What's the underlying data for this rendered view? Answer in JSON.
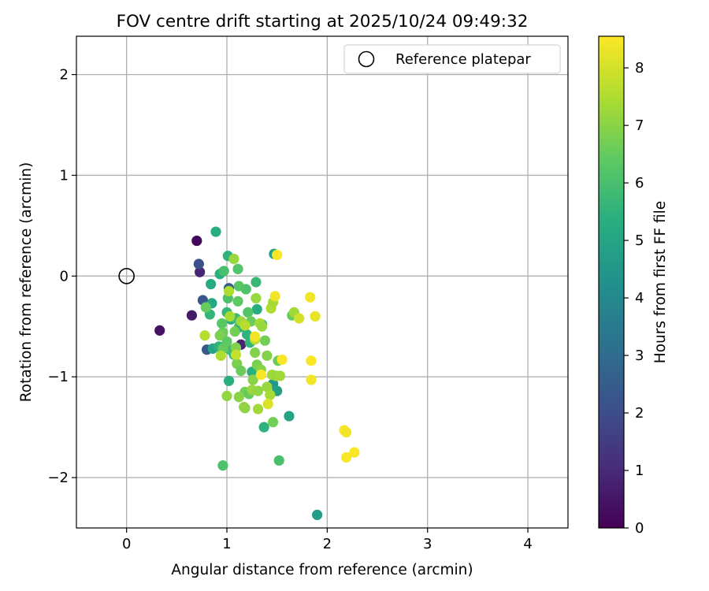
{
  "chart_data": {
    "type": "scatter",
    "title": "FOV centre drift starting at 2025/10/24 09:49:32",
    "xlabel": "Angular distance from reference (arcmin)",
    "ylabel": "Rotation from reference (arcmin)",
    "xlim": [
      -0.5,
      4.4
    ],
    "ylim": [
      -2.5,
      2.38
    ],
    "xticks": [
      0,
      1,
      2,
      3,
      4
    ],
    "xtick_labels": [
      "0",
      "1",
      "2",
      "3",
      "4"
    ],
    "yticks": [
      -2,
      -1,
      0,
      1,
      2
    ],
    "ytick_labels": [
      "−2",
      "−1",
      "0",
      "1",
      "2"
    ],
    "grid": true,
    "legend": {
      "placement": "top-right",
      "entries": [
        {
          "label": "Reference platepar",
          "marker": "open-circle"
        }
      ]
    },
    "reference_point": {
      "x": 0,
      "y": 0,
      "label": "Reference platepar"
    },
    "colorbar": {
      "label": "Hours from first FF file",
      "colormap": "viridis",
      "range": [
        0,
        8.55
      ],
      "ticks": [
        0,
        1,
        2,
        3,
        4,
        5,
        6,
        7,
        8
      ],
      "tick_labels": [
        "0",
        "1",
        "2",
        "3",
        "4",
        "5",
        "6",
        "7",
        "8"
      ]
    },
    "points": [
      {
        "x": 0.33,
        "y": -0.54,
        "h": 0.4
      },
      {
        "x": 0.7,
        "y": 0.35,
        "h": 0.2
      },
      {
        "x": 0.65,
        "y": -0.39,
        "h": 0.6
      },
      {
        "x": 0.73,
        "y": 0.04,
        "h": 0.9
      },
      {
        "x": 1.14,
        "y": -0.68,
        "h": 0.8
      },
      {
        "x": 0.72,
        "y": 0.12,
        "h": 2.1
      },
      {
        "x": 0.76,
        "y": -0.24,
        "h": 2.3
      },
      {
        "x": 0.8,
        "y": -0.73,
        "h": 2.4
      },
      {
        "x": 1.02,
        "y": -0.12,
        "h": 2.6
      },
      {
        "x": 0.89,
        "y": 0.44,
        "h": 5.3
      },
      {
        "x": 1.01,
        "y": 0.2,
        "h": 5.5
      },
      {
        "x": 1.47,
        "y": 0.22,
        "h": 4.9
      },
      {
        "x": 1.9,
        "y": -2.37,
        "h": 4.7
      },
      {
        "x": 1.62,
        "y": -1.39,
        "h": 4.9
      },
      {
        "x": 1.46,
        "y": -1.07,
        "h": 4.5
      },
      {
        "x": 1.5,
        "y": -1.14,
        "h": 4.8
      },
      {
        "x": 0.93,
        "y": 0.02,
        "h": 5.4
      },
      {
        "x": 0.84,
        "y": -0.08,
        "h": 5.2
      },
      {
        "x": 0.85,
        "y": -0.27,
        "h": 5.1
      },
      {
        "x": 0.83,
        "y": -0.38,
        "h": 5.6
      },
      {
        "x": 0.86,
        "y": -0.72,
        "h": 5.0
      },
      {
        "x": 0.92,
        "y": -0.7,
        "h": 5.5
      },
      {
        "x": 1.0,
        "y": -0.36,
        "h": 5.7
      },
      {
        "x": 1.04,
        "y": -0.43,
        "h": 5.3
      },
      {
        "x": 1.02,
        "y": -1.04,
        "h": 5.4
      },
      {
        "x": 1.09,
        "y": -0.42,
        "h": 5.8
      },
      {
        "x": 1.12,
        "y": -0.51,
        "h": 5.6
      },
      {
        "x": 1.15,
        "y": -0.5,
        "h": 5.2
      },
      {
        "x": 1.03,
        "y": -0.73,
        "h": 5.9
      },
      {
        "x": 1.07,
        "y": -0.78,
        "h": 5.7
      },
      {
        "x": 1.2,
        "y": -0.58,
        "h": 5.5
      },
      {
        "x": 1.23,
        "y": -0.66,
        "h": 5.6
      },
      {
        "x": 1.25,
        "y": -0.95,
        "h": 5.4
      },
      {
        "x": 1.29,
        "y": -0.06,
        "h": 5.7
      },
      {
        "x": 1.3,
        "y": -0.33,
        "h": 5.3
      },
      {
        "x": 1.35,
        "y": -0.48,
        "h": 5.6
      },
      {
        "x": 1.37,
        "y": -1.5,
        "h": 5.5
      },
      {
        "x": 1.52,
        "y": -1.83,
        "h": 6.0
      },
      {
        "x": 0.96,
        "y": -1.88,
        "h": 6.1
      },
      {
        "x": 0.97,
        "y": 0.05,
        "h": 6.0
      },
      {
        "x": 1.01,
        "y": -0.22,
        "h": 6.1
      },
      {
        "x": 1.11,
        "y": 0.07,
        "h": 6.2
      },
      {
        "x": 1.12,
        "y": -0.1,
        "h": 6.3
      },
      {
        "x": 1.19,
        "y": -0.13,
        "h": 6.1
      },
      {
        "x": 1.11,
        "y": -0.25,
        "h": 6.4
      },
      {
        "x": 1.21,
        "y": -0.36,
        "h": 6.2
      },
      {
        "x": 1.24,
        "y": -0.45,
        "h": 6.6
      },
      {
        "x": 0.79,
        "y": -0.31,
        "h": 6.5
      },
      {
        "x": 0.95,
        "y": -0.47,
        "h": 6.3
      },
      {
        "x": 0.96,
        "y": -0.56,
        "h": 6.6
      },
      {
        "x": 0.93,
        "y": -0.59,
        "h": 6.8
      },
      {
        "x": 0.96,
        "y": -0.72,
        "h": 6.5
      },
      {
        "x": 1.0,
        "y": -0.65,
        "h": 6.4
      },
      {
        "x": 1.08,
        "y": -0.55,
        "h": 6.7
      },
      {
        "x": 1.09,
        "y": -0.71,
        "h": 6.9
      },
      {
        "x": 1.1,
        "y": -0.87,
        "h": 6.8
      },
      {
        "x": 1.14,
        "y": -0.94,
        "h": 6.6
      },
      {
        "x": 1.18,
        "y": -1.15,
        "h": 6.7
      },
      {
        "x": 1.22,
        "y": -1.17,
        "h": 6.5
      },
      {
        "x": 1.18,
        "y": -1.31,
        "h": 6.9
      },
      {
        "x": 1.28,
        "y": -0.76,
        "h": 6.9
      },
      {
        "x": 1.3,
        "y": -0.88,
        "h": 6.8
      },
      {
        "x": 1.34,
        "y": -0.93,
        "h": 7.0
      },
      {
        "x": 1.38,
        "y": -0.64,
        "h": 6.7
      },
      {
        "x": 1.4,
        "y": -0.79,
        "h": 6.9
      },
      {
        "x": 1.46,
        "y": -1.45,
        "h": 6.7
      },
      {
        "x": 1.51,
        "y": -0.84,
        "h": 6.6
      },
      {
        "x": 1.65,
        "y": -0.39,
        "h": 6.5
      },
      {
        "x": 1.0,
        "y": -1.19,
        "h": 7.1
      },
      {
        "x": 1.12,
        "y": -1.2,
        "h": 7.0
      },
      {
        "x": 1.17,
        "y": -1.3,
        "h": 7.1
      },
      {
        "x": 1.25,
        "y": -1.13,
        "h": 7.2
      },
      {
        "x": 1.26,
        "y": -1.03,
        "h": 7.0
      },
      {
        "x": 1.31,
        "y": -1.32,
        "h": 7.3
      },
      {
        "x": 1.31,
        "y": -1.14,
        "h": 7.1
      },
      {
        "x": 1.4,
        "y": -1.1,
        "h": 7.2
      },
      {
        "x": 1.43,
        "y": -1.18,
        "h": 7.4
      },
      {
        "x": 1.45,
        "y": -0.98,
        "h": 7.3
      },
      {
        "x": 1.49,
        "y": -0.99,
        "h": 7.2
      },
      {
        "x": 1.53,
        "y": -0.99,
        "h": 7.3
      },
      {
        "x": 1.07,
        "y": 0.17,
        "h": 7.2
      },
      {
        "x": 1.02,
        "y": -0.15,
        "h": 7.5
      },
      {
        "x": 1.03,
        "y": -0.4,
        "h": 7.4
      },
      {
        "x": 1.14,
        "y": -0.45,
        "h": 7.3
      },
      {
        "x": 1.18,
        "y": -0.49,
        "h": 7.6
      },
      {
        "x": 1.29,
        "y": -0.22,
        "h": 7.2
      },
      {
        "x": 1.33,
        "y": -0.47,
        "h": 7.4
      },
      {
        "x": 1.35,
        "y": -0.5,
        "h": 7.2
      },
      {
        "x": 1.44,
        "y": -0.32,
        "h": 7.5
      },
      {
        "x": 1.46,
        "y": -0.26,
        "h": 7.4
      },
      {
        "x": 1.67,
        "y": -0.36,
        "h": 7.3
      },
      {
        "x": 0.78,
        "y": -0.59,
        "h": 7.6
      },
      {
        "x": 0.94,
        "y": -0.79,
        "h": 7.5
      },
      {
        "x": 1.09,
        "y": -0.78,
        "h": 7.8
      },
      {
        "x": 1.28,
        "y": -0.63,
        "h": 7.7
      },
      {
        "x": 1.72,
        "y": -0.42,
        "h": 8.0
      },
      {
        "x": 1.41,
        "y": -1.27,
        "h": 8.1
      },
      {
        "x": 1.48,
        "y": -0.2,
        "h": 8.4
      },
      {
        "x": 1.5,
        "y": 0.21,
        "h": 8.5
      },
      {
        "x": 1.28,
        "y": -0.6,
        "h": 8.4
      },
      {
        "x": 1.34,
        "y": -0.98,
        "h": 8.5
      },
      {
        "x": 1.55,
        "y": -0.83,
        "h": 8.5
      },
      {
        "x": 1.83,
        "y": -0.21,
        "h": 8.4
      },
      {
        "x": 1.88,
        "y": -0.4,
        "h": 8.3
      },
      {
        "x": 1.84,
        "y": -0.84,
        "h": 8.5
      },
      {
        "x": 1.84,
        "y": -1.03,
        "h": 8.4
      },
      {
        "x": 2.17,
        "y": -1.53,
        "h": 8.5
      },
      {
        "x": 2.19,
        "y": -1.55,
        "h": 8.4
      },
      {
        "x": 2.19,
        "y": -1.8,
        "h": 8.5
      },
      {
        "x": 2.27,
        "y": -1.75,
        "h": 8.5
      }
    ]
  }
}
